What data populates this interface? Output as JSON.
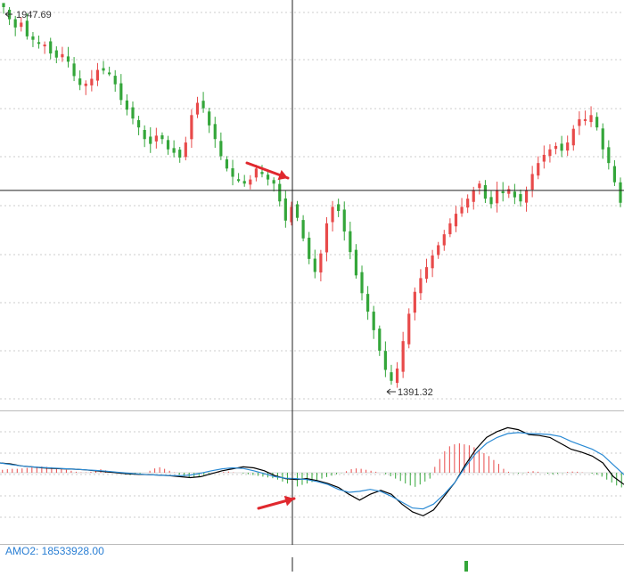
{
  "chart_data": [
    {
      "type": "candlestick",
      "title": "",
      "annotations": {
        "high_label": "1947.69",
        "low_label": "1391.32"
      },
      "price_range": [
        1391.32,
        1947.69
      ],
      "crosshair_value": 1680,
      "grid": true,
      "closes": [
        1947.69,
        1930,
        1918,
        1925,
        1905,
        1900,
        1896,
        1893,
        1880,
        1874,
        1879,
        1868,
        1847,
        1834,
        1836,
        1843,
        1856,
        1855,
        1852,
        1835,
        1812,
        1798,
        1785,
        1772,
        1755,
        1748,
        1760,
        1755,
        1740,
        1735,
        1728,
        1750,
        1790,
        1808,
        1800,
        1775,
        1755,
        1730,
        1712,
        1700,
        1696,
        1690,
        1696,
        1712,
        1704,
        1696,
        1690,
        1664,
        1636,
        1656,
        1640,
        1610,
        1580,
        1561,
        1588,
        1632,
        1656,
        1650,
        1620,
        1590,
        1556,
        1530,
        1503,
        1476,
        1446,
        1418,
        1402,
        1420,
        1460,
        1500,
        1532,
        1552,
        1568,
        1585,
        1600,
        1616,
        1632,
        1646,
        1656,
        1668,
        1680,
        1690,
        1668,
        1660,
        1680,
        1676,
        1682,
        1670,
        1664,
        1680,
        1704,
        1720,
        1732,
        1740,
        1745,
        1738,
        1750,
        1770,
        1784,
        1784,
        1790,
        1772,
        1740,
        1720,
        1692,
        1662
      ]
    },
    {
      "type": "oscillator",
      "title": "",
      "zero_line": true,
      "series": [
        {
          "color": "#000000",
          "values": [
            0.5,
            0.45,
            0.35,
            0.3,
            0.25,
            0.22,
            0.2,
            0.18,
            0.15,
            0.1,
            0.05,
            0.0,
            -0.05,
            -0.08,
            -0.1,
            -0.12,
            -0.15,
            -0.2,
            -0.25,
            -0.2,
            -0.05,
            0.1,
            0.2,
            0.3,
            0.25,
            0.1,
            -0.15,
            -0.3,
            -0.35,
            -0.3,
            -0.4,
            -0.55,
            -0.75,
            -1.1,
            -1.4,
            -1.1,
            -0.9,
            -1.1,
            -1.6,
            -2.0,
            -2.2,
            -1.9,
            -1.2,
            -0.5,
            0.4,
            1.2,
            1.8,
            2.1,
            2.3,
            2.2,
            1.95,
            1.9,
            1.8,
            1.5,
            1.2,
            1.05,
            0.85,
            0.5,
            -0.2,
            -0.6
          ]
        },
        {
          "color": "#2a8ad4",
          "values": [
            0.5,
            0.42,
            0.35,
            0.3,
            0.27,
            0.24,
            0.21,
            0.18,
            0.15,
            0.12,
            0.08,
            0.03,
            -0.02,
            -0.06,
            -0.1,
            -0.12,
            -0.14,
            -0.15,
            -0.12,
            -0.02,
            0.1,
            0.2,
            0.25,
            0.22,
            0.1,
            -0.05,
            -0.2,
            -0.28,
            -0.3,
            -0.35,
            -0.45,
            -0.6,
            -0.85,
            -1.0,
            -0.95,
            -0.85,
            -0.95,
            -1.2,
            -1.5,
            -1.8,
            -1.85,
            -1.6,
            -1.1,
            -0.5,
            0.3,
            1.0,
            1.5,
            1.8,
            2.0,
            2.05,
            2.0,
            1.98,
            1.95,
            1.85,
            1.6,
            1.4,
            1.2,
            0.9,
            0.4,
            -0.1
          ]
        }
      ],
      "histogram": [
        0.15,
        0.18,
        0.2,
        0.2,
        0.22,
        0.25,
        0.28,
        0.3,
        0.32,
        0.3,
        0.28,
        0.25,
        0.2,
        0.15,
        0.1,
        0.05,
        0.02,
        0.02,
        0.05,
        0.1,
        0.18,
        0.12,
        0.08,
        0.04,
        0.0,
        -0.08,
        -0.12,
        -0.08,
        -0.04,
        0.0,
        0.1,
        0.22,
        0.28,
        0.2,
        0.1,
        0.02,
        -0.1,
        -0.18,
        -0.25,
        -0.22,
        -0.18,
        -0.12,
        -0.06,
        -0.02,
        0.02,
        0.04,
        0.06,
        0.02,
        0.0,
        -0.04,
        -0.08,
        -0.12,
        -0.16,
        -0.2,
        -0.24,
        -0.28,
        -0.35,
        -0.45,
        -0.55,
        -0.62,
        -0.7,
        -0.62,
        -0.55,
        -0.48,
        -0.4,
        -0.3,
        -0.22,
        -0.15,
        -0.08,
        -0.02,
        0.08,
        0.18,
        0.22,
        0.2,
        0.15,
        0.1,
        0.05,
        0.0,
        -0.08,
        -0.18,
        -0.3,
        -0.42,
        -0.55,
        -0.65,
        -0.72,
        -0.6,
        -0.45,
        -0.3,
        0.3,
        0.7,
        1.1,
        1.35,
        1.45,
        1.5,
        1.45,
        1.4,
        1.3,
        1.15,
        1.0,
        0.85,
        0.65,
        0.45,
        0.2,
        0.05,
        -0.02,
        -0.04,
        -0.02,
        0.05,
        0.08,
        0.05,
        0.0,
        -0.05,
        -0.08,
        -0.05,
        -0.02,
        0.04,
        0.06,
        0.05,
        0.02,
        0.0,
        -0.05,
        -0.1,
        -0.2,
        -0.35,
        -0.5,
        -0.65,
        -0.75
      ]
    }
  ],
  "legend": {
    "amo2": "AMO2: 18533928.00"
  },
  "colors": {
    "up": "#e84a4a",
    "down": "#34a63a",
    "grid": "#cccccc",
    "crosshair": "#222222",
    "arrow": "#e0282e"
  }
}
